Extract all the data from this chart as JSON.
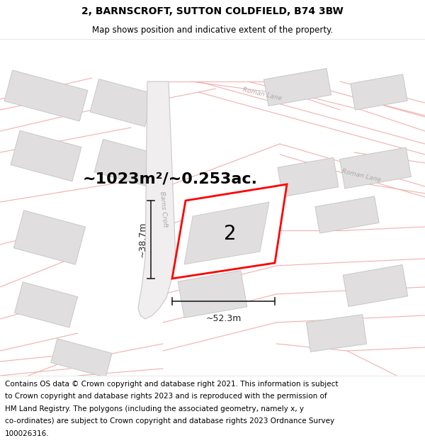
{
  "title": "2, BARNSCROFT, SUTTON COLDFIELD, B74 3BW",
  "subtitle": "Map shows position and indicative extent of the property.",
  "title_fontsize": 10,
  "subtitle_fontsize": 8.5,
  "map_bg": "#ffffff",
  "footer_bg": "#ffffff",
  "area_text": "~1023m²/~0.253ac.",
  "area_fontsize": 16,
  "dim_width": "~52.3m",
  "dim_height": "~38.7m",
  "dim_fontsize": 9,
  "parcel_label": "2",
  "parcel_fontsize": 20,
  "red_color": "#ff0000",
  "plot_line_color": "#f0b0b0",
  "building_fill": "#e0dede",
  "building_edge": "#c8c8c8",
  "road_fill": "#e8e8e8",
  "road_edge": "#d0d0d0",
  "lane_label_color": "#aaaaaa",
  "dim_color": "#222222",
  "footer_lines": [
    "Contains OS data © Crown copyright and database right 2021. This information is subject",
    "to Crown copyright and database rights 2023 and is reproduced with the permission of",
    "HM Land Registry. The polygons (including the associated geometry, namely x, y",
    "co-ordinates) are subject to Crown copyright and database rights 2023 Ordnance Survey",
    "100026316."
  ],
  "footer_fontsize": 7.5
}
